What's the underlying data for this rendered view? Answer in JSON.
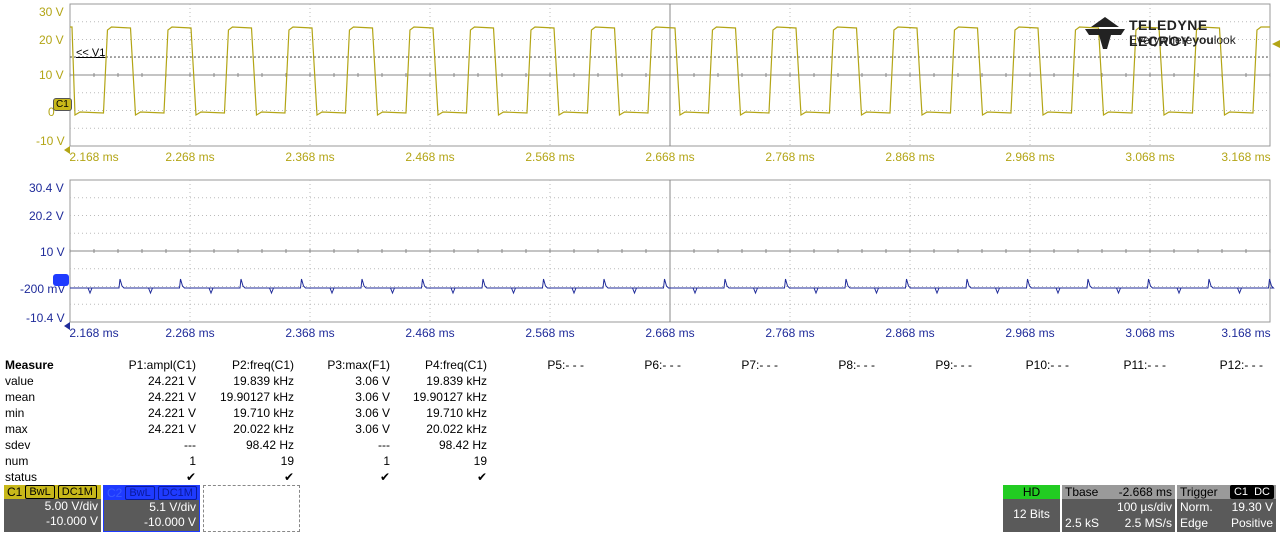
{
  "brand": {
    "name": "TELEDYNE LECROY",
    "tagline_pre": "Everywhere",
    "tagline_you": "you",
    "tagline_post": "look"
  },
  "colors": {
    "c1": "#b3a516",
    "c2": "#1f2b9a",
    "grid": "#aaaaaa",
    "green": "#22cc22"
  },
  "top_plot": {
    "y_labels": [
      "30 V",
      "20 V",
      "10 V",
      "0",
      "-10 V"
    ],
    "cursor_label": "<< V1",
    "channel_marker": "C1",
    "x_ticks": [
      "2.168 ms",
      "2.268 ms",
      "2.368 ms",
      "2.468 ms",
      "2.568 ms",
      "2.668 ms",
      "2.768 ms",
      "2.868 ms",
      "2.968 ms",
      "3.068 ms",
      "3.168 ms"
    ]
  },
  "bottom_plot": {
    "y_labels": [
      "30.4 V",
      "20.2 V",
      "10 V",
      "-200 mV",
      "-10.4 V"
    ],
    "x_ticks": [
      "2.168 ms",
      "2.268 ms",
      "2.368 ms",
      "2.468 ms",
      "2.568 ms",
      "2.668 ms",
      "2.768 ms",
      "2.868 ms",
      "2.968 ms",
      "3.068 ms",
      "3.168 ms"
    ]
  },
  "measure": {
    "title": "Measure",
    "row_labels": [
      "value",
      "mean",
      "min",
      "max",
      "sdev",
      "num",
      "status"
    ],
    "columns": [
      {
        "header": "P1:ampl(C1)",
        "values": [
          "24.221 V",
          "24.221 V",
          "24.221 V",
          "24.221 V",
          "---",
          "1",
          "✔"
        ]
      },
      {
        "header": "P2:freq(C1)",
        "values": [
          "19.839 kHz",
          "19.90127 kHz",
          "19.710 kHz",
          "20.022 kHz",
          "98.42 Hz",
          "19",
          "✔"
        ]
      },
      {
        "header": "P3:max(F1)",
        "values": [
          "3.06 V",
          "3.06 V",
          "3.06 V",
          "3.06 V",
          "---",
          "1",
          "✔"
        ]
      },
      {
        "header": "P4:freq(C1)",
        "values": [
          "19.839 kHz",
          "19.90127 kHz",
          "19.710 kHz",
          "20.022 kHz",
          "98.42 Hz",
          "19",
          "✔"
        ]
      }
    ],
    "empty_params": [
      "P5:- - -",
      "P6:- - -",
      "P7:- - -",
      "P8:- - -",
      "P9:- - -",
      "P10:- - -",
      "P11:- - -",
      "P12:- - -"
    ]
  },
  "channels": {
    "c1": {
      "name": "C1",
      "bwl": "BwL",
      "coupling": "DC1M",
      "vdiv": "5.00 V/div",
      "offset": "-10.000 V"
    },
    "c2": {
      "name": "C2",
      "bwl": "BwL",
      "coupling": "DC1M",
      "vdiv": "5.1 V/div",
      "offset": "-10.000 V"
    }
  },
  "hd": {
    "label": "HD",
    "bits": "12 Bits"
  },
  "timebase": {
    "label": "Tbase",
    "delay": "-2.668 ms",
    "tdiv": "100 µs/div",
    "samples": "2.5 kS",
    "rate": "2.5 MS/s"
  },
  "trigger": {
    "label": "Trigger",
    "ch": "C1",
    "coupling": "DC",
    "mode": "Norm.",
    "level": "19.30 V",
    "type": "Edge",
    "slope": "Positive"
  }
}
